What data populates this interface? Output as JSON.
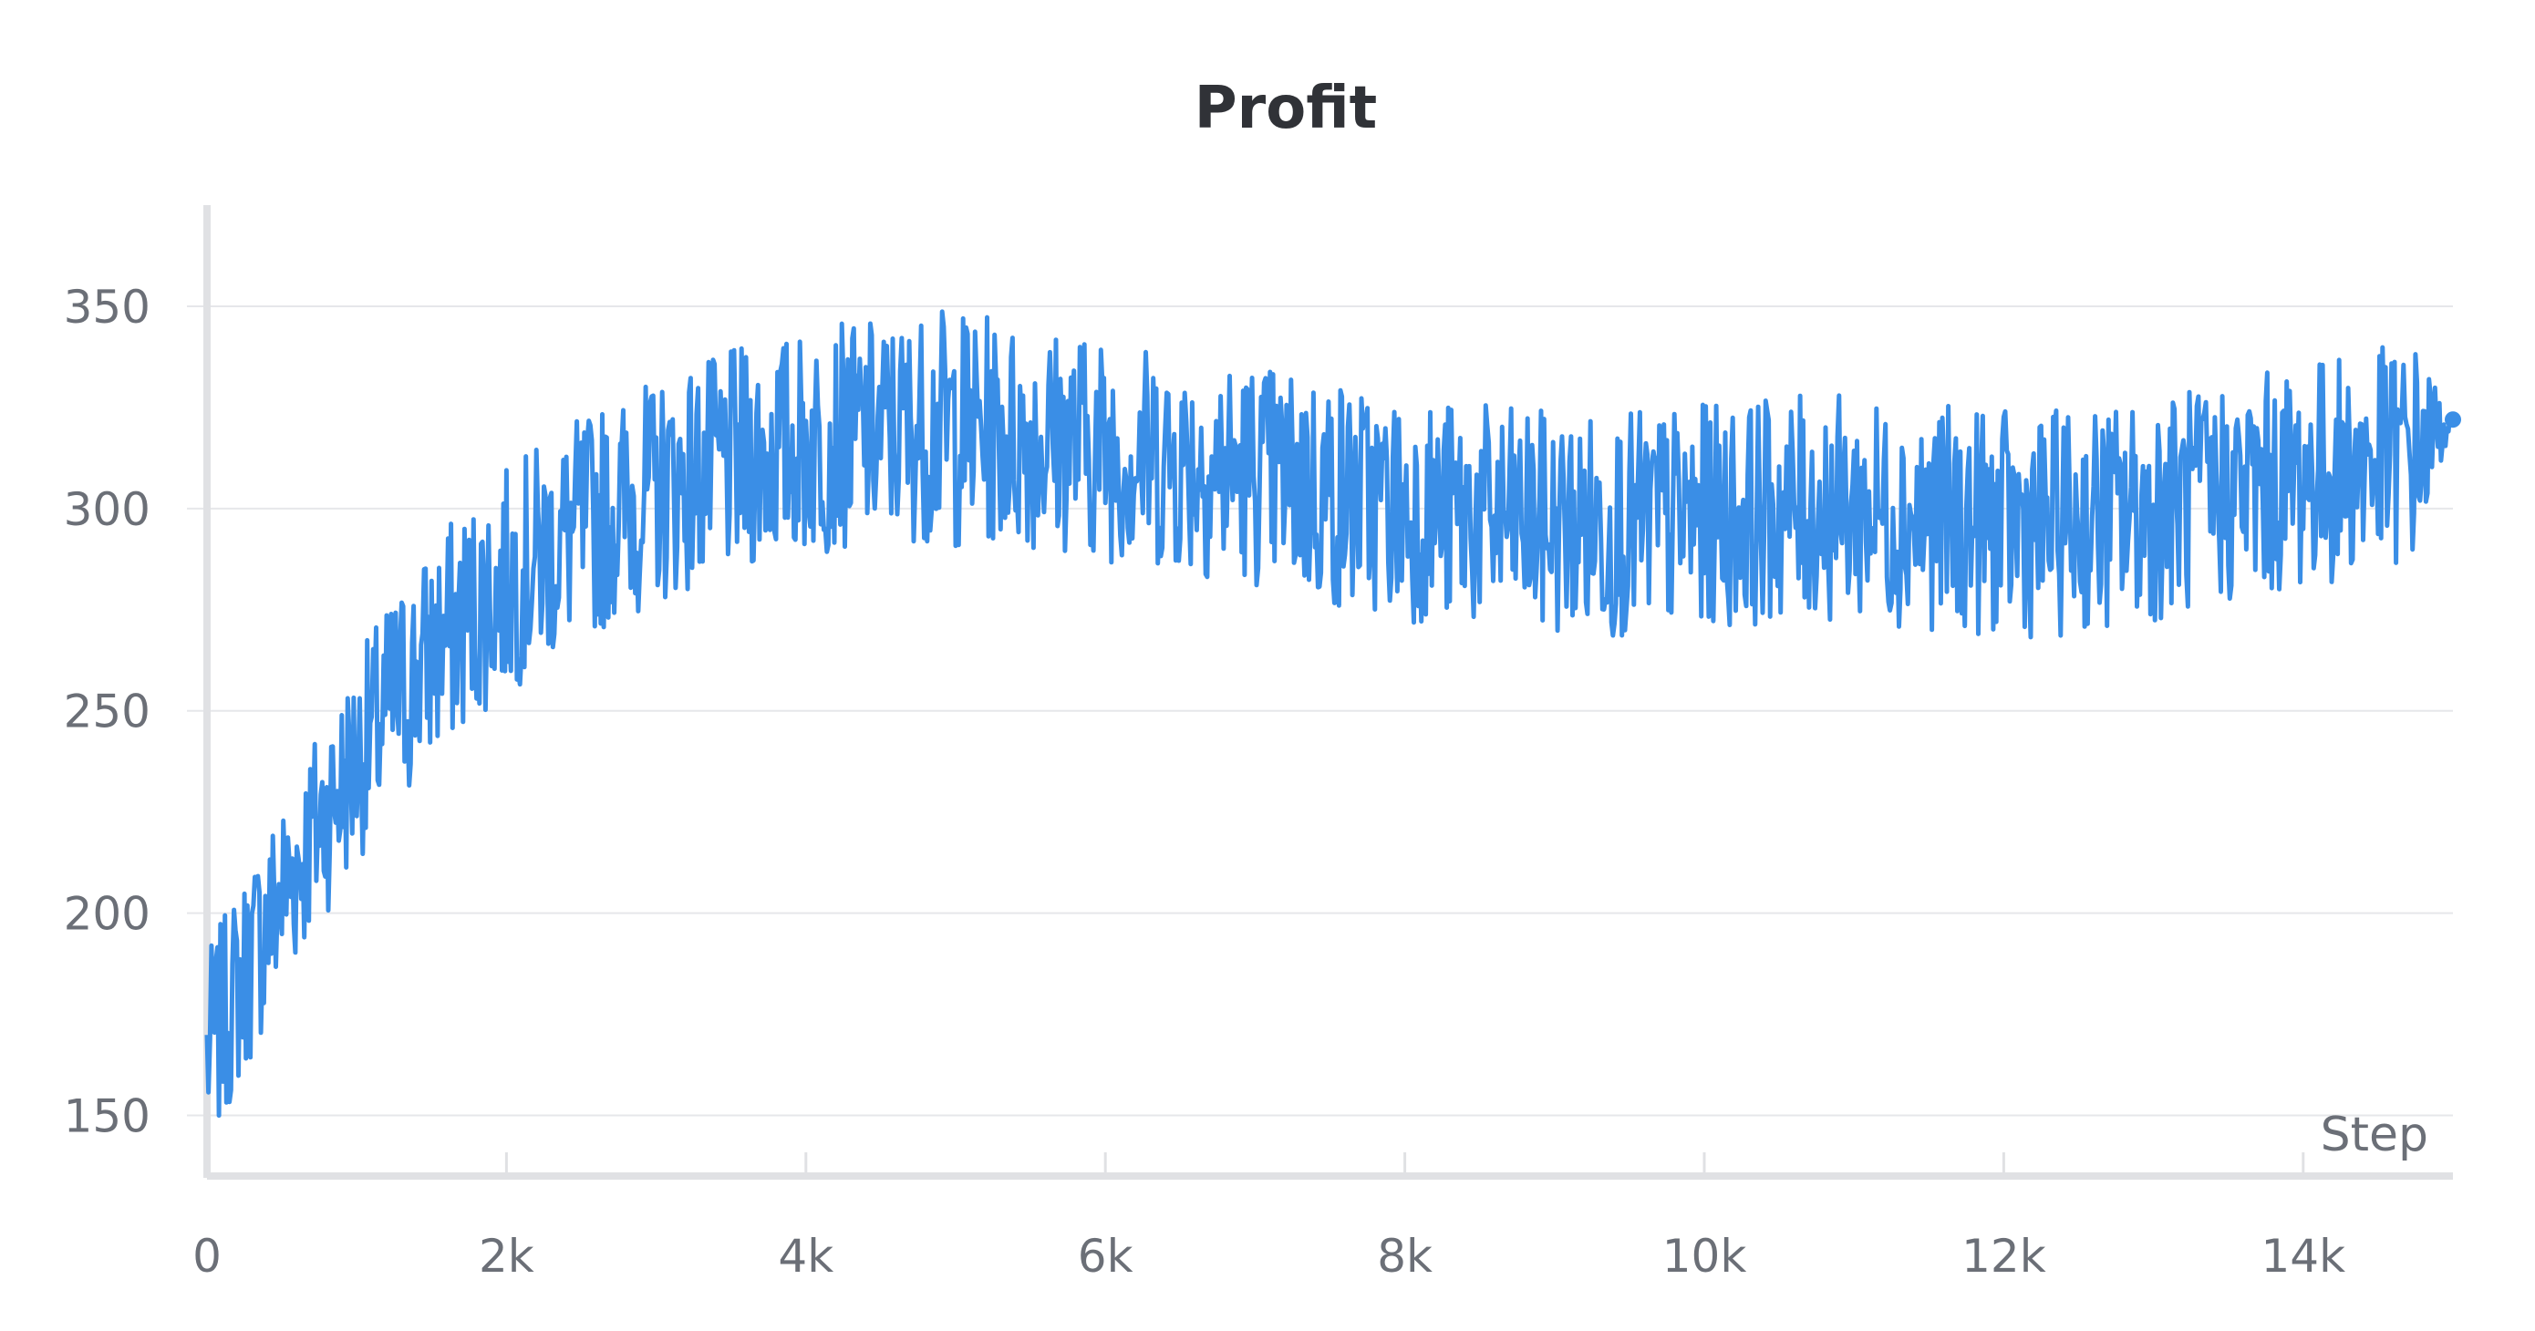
{
  "chart_data": {
    "type": "line",
    "title": "Profit",
    "xlabel": "Step",
    "ylabel": "",
    "xlim": [
      0,
      15000
    ],
    "ylim": [
      135,
      375
    ],
    "x_ticks": [
      0,
      2000,
      4000,
      6000,
      8000,
      10000,
      12000,
      14000
    ],
    "x_tick_labels": [
      "0",
      "2k",
      "4k",
      "6k",
      "8k",
      "10k",
      "12k",
      "14k"
    ],
    "y_ticks": [
      150,
      200,
      250,
      300,
      350
    ],
    "y_tick_labels": [
      "150",
      "200",
      "250",
      "300",
      "350"
    ],
    "grid": true,
    "legend": "none",
    "colors": {
      "line": "#3a8ee6",
      "grid": "#e6e7ea",
      "axis": "#e0e1e4",
      "text": "#6b6f77",
      "title": "#303237"
    },
    "series": [
      {
        "name": "",
        "x": [
          0,
          250,
          500,
          750,
          1000,
          1250,
          1500,
          1750,
          2000,
          2250,
          2500,
          2750,
          3000,
          3250,
          3500,
          3750,
          4000,
          4250,
          4500,
          4750,
          5000,
          5250,
          5500,
          5750,
          6000,
          6250,
          6500,
          6750,
          7000,
          7250,
          7500,
          7750,
          8000,
          8250,
          8500,
          8750,
          9000,
          9250,
          9500,
          9750,
          10000,
          10250,
          10500,
          10750,
          11000,
          11250,
          11500,
          11750,
          12000,
          12250,
          12500,
          12750,
          13000,
          13250,
          13500,
          13750,
          14000,
          14250,
          14500,
          14750,
          15000
        ],
        "values": [
          165,
          185,
          205,
          222,
          238,
          252,
          264,
          274,
          282,
          289,
          295,
          300,
          304,
          308,
          311,
          314,
          316,
          318,
          319,
          320,
          320,
          319,
          318,
          317,
          315,
          313,
          312,
          310,
          309,
          307,
          304,
          302,
          300,
          299,
          298,
          297,
          296,
          296,
          296,
          297,
          298,
          299,
          300,
          300,
          300,
          299,
          298,
          297,
          296,
          296,
          297,
          298,
          300,
          302,
          304,
          306,
          308,
          310,
          312,
          314,
          322
        ],
        "noise_band": [
          18,
          18,
          18,
          18,
          18,
          20,
          20,
          20,
          20,
          20,
          20,
          20,
          20,
          20,
          20,
          20,
          20,
          20,
          20,
          20,
          22,
          20,
          20,
          20,
          20,
          20,
          20,
          20,
          20,
          20,
          22,
          20,
          20,
          20,
          20,
          20,
          20,
          20,
          20,
          20,
          20,
          20,
          20,
          20,
          20,
          20,
          20,
          20,
          20,
          20,
          20,
          20,
          20,
          20,
          20,
          20,
          20,
          20,
          20,
          20,
          0
        ]
      }
    ]
  }
}
